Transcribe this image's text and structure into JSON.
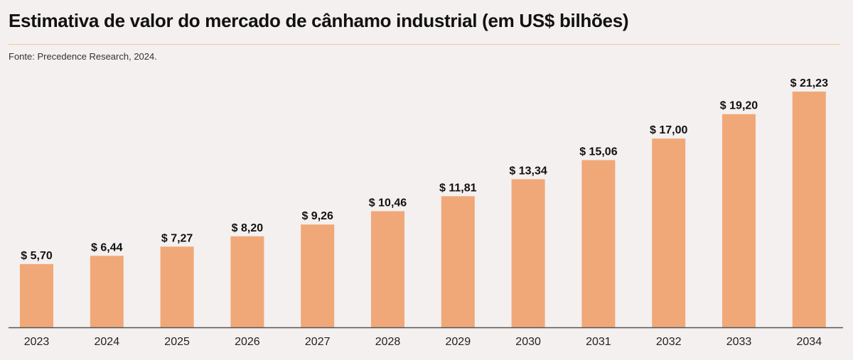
{
  "title": "Estimativa de valor do mercado de cânhamo industrial (em US$ bilhões)",
  "source": "Fonte: Precedence Research, 2024.",
  "colors": {
    "bar": "#f0a878",
    "background": "#f4f0ef",
    "separator": "#f2c4a4",
    "axis": "#555555"
  },
  "chart_data": {
    "type": "bar",
    "title": "Estimativa de valor do mercado de cânhamo industrial (em US$ bilhões)",
    "xlabel": "",
    "ylabel": "",
    "categories": [
      "2023",
      "2024",
      "2025",
      "2026",
      "2027",
      "2028",
      "2029",
      "2030",
      "2031",
      "2032",
      "2033",
      "2034"
    ],
    "values": [
      5.7,
      6.44,
      7.27,
      8.2,
      9.26,
      10.46,
      11.81,
      13.34,
      15.06,
      17.0,
      19.2,
      21.23
    ],
    "data_labels": [
      "$ 5,70",
      "$ 6,44",
      "$ 7,27",
      "$ 8,20",
      "$ 9,26",
      "$ 10,46",
      "$ 11,81",
      "$ 13,34",
      "$ 15,06",
      "$ 17,00",
      "$ 19,20",
      "$ 21,23"
    ],
    "ylim": [
      0,
      21.23
    ],
    "grid": false,
    "legend": "none"
  }
}
